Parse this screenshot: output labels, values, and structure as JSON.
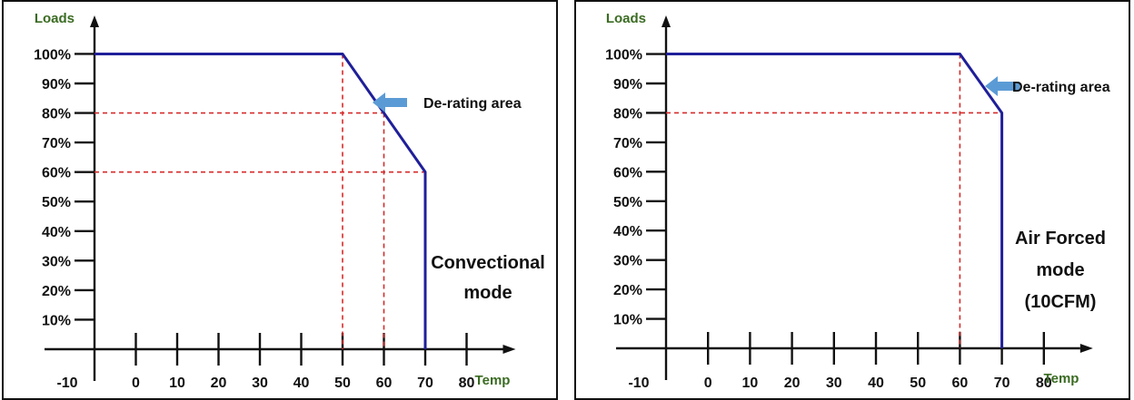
{
  "chart_data": [
    {
      "type": "line",
      "ylabel": "Loads",
      "xlabel": "Temp",
      "x_ticks": [
        "-10",
        "0",
        "10",
        "20",
        "30",
        "40",
        "50",
        "60",
        "70",
        "80"
      ],
      "y_ticks": [
        "10%",
        "20%",
        "30%",
        "40%",
        "50%",
        "60%",
        "70%",
        "80%",
        "90%",
        "100%"
      ],
      "xlim": [
        -10,
        80
      ],
      "ylim": [
        0,
        100
      ],
      "series": [
        {
          "x": [
            -10,
            50,
            70,
            70
          ],
          "y": [
            100,
            100,
            60,
            0
          ]
        }
      ],
      "guides": [
        {
          "x": 50,
          "y": 100
        },
        {
          "x": 60,
          "y": 80
        },
        {
          "x": 70,
          "y": 60
        }
      ],
      "annotation": "De-rating area",
      "mode_label": [
        "Convectional",
        "mode"
      ]
    },
    {
      "type": "line",
      "ylabel": "Loads",
      "xlabel": "Temp",
      "x_ticks": [
        "-10",
        "0",
        "10",
        "20",
        "30",
        "40",
        "50",
        "60",
        "70",
        "80"
      ],
      "y_ticks": [
        "10%",
        "20%",
        "30%",
        "40%",
        "50%",
        "60%",
        "70%",
        "80%",
        "90%",
        "100%"
      ],
      "xlim": [
        -10,
        80
      ],
      "ylim": [
        0,
        100
      ],
      "series": [
        {
          "x": [
            -10,
            60,
            70,
            70
          ],
          "y": [
            100,
            100,
            80,
            0
          ]
        }
      ],
      "guides": [
        {
          "x": 60,
          "y": 100
        },
        {
          "x": 70,
          "y": 80
        }
      ],
      "annotation": "De-rating area",
      "mode_label": [
        "Air Forced",
        "mode",
        "(10CFM)"
      ]
    }
  ],
  "colors": {
    "curve": "#1f1f9a",
    "guide": "#d62a2a",
    "axis_name": "#3a6b22",
    "arrow": "#5b9bd5"
  }
}
